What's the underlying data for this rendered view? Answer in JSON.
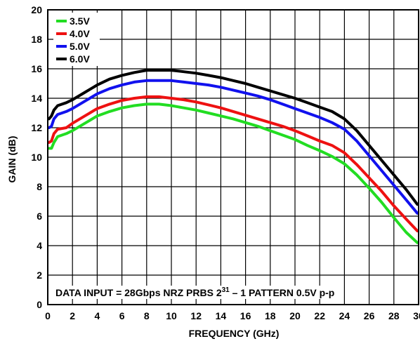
{
  "chart_data": {
    "type": "line",
    "xlabel": "FREQUENCY (GHz)",
    "ylabel": "GAIN (dB)",
    "xlim": [
      0,
      30
    ],
    "ylim": [
      0,
      20
    ],
    "x_ticks": [
      "0",
      "2",
      "4",
      "6",
      "8",
      "10",
      "12",
      "14",
      "16",
      "18",
      "20",
      "22",
      "24",
      "26",
      "28",
      "30"
    ],
    "y_ticks": [
      "0",
      "2",
      "4",
      "6",
      "8",
      "10",
      "12",
      "14",
      "16",
      "18",
      "20"
    ],
    "grid": true,
    "legend_position": "top-left",
    "annotation": {
      "prefix": "DATA INPUT = 28Gbps NRZ PRBS 2",
      "superscript": "31",
      "suffix": " – 1 PATTERN 0.5V p-p"
    },
    "series": [
      {
        "name": "3.5V",
        "color": "#22dd22",
        "points": [
          [
            0.1,
            10.6
          ],
          [
            0.3,
            10.6
          ],
          [
            0.5,
            11.0
          ],
          [
            0.8,
            11.4
          ],
          [
            1.5,
            11.6
          ],
          [
            2,
            11.8
          ],
          [
            3,
            12.3
          ],
          [
            4,
            12.8
          ],
          [
            5,
            13.1
          ],
          [
            6,
            13.35
          ],
          [
            7,
            13.5
          ],
          [
            8,
            13.6
          ],
          [
            9,
            13.6
          ],
          [
            10,
            13.5
          ],
          [
            11,
            13.35
          ],
          [
            12,
            13.2
          ],
          [
            13,
            13.0
          ],
          [
            14,
            12.8
          ],
          [
            15,
            12.6
          ],
          [
            16,
            12.35
          ],
          [
            17,
            12.1
          ],
          [
            18,
            11.8
          ],
          [
            19,
            11.5
          ],
          [
            20,
            11.2
          ],
          [
            21,
            10.8
          ],
          [
            22,
            10.45
          ],
          [
            23,
            10.05
          ],
          [
            24,
            9.55
          ],
          [
            25,
            8.8
          ],
          [
            26,
            7.9
          ],
          [
            27,
            6.95
          ],
          [
            28,
            5.9
          ],
          [
            29,
            4.9
          ],
          [
            29.9,
            4.2
          ]
        ]
      },
      {
        "name": "4.0V",
        "color": "#ee1111",
        "points": [
          [
            0.1,
            11.0
          ],
          [
            0.3,
            11.1
          ],
          [
            0.5,
            11.6
          ],
          [
            0.8,
            11.9
          ],
          [
            1.5,
            12.0
          ],
          [
            2,
            12.3
          ],
          [
            3,
            12.8
          ],
          [
            4,
            13.3
          ],
          [
            5,
            13.6
          ],
          [
            6,
            13.85
          ],
          [
            7,
            14.0
          ],
          [
            8,
            14.1
          ],
          [
            9,
            14.1
          ],
          [
            10,
            14.0
          ],
          [
            11,
            13.9
          ],
          [
            12,
            13.75
          ],
          [
            13,
            13.55
          ],
          [
            14,
            13.35
          ],
          [
            15,
            13.1
          ],
          [
            16,
            12.85
          ],
          [
            17,
            12.6
          ],
          [
            18,
            12.35
          ],
          [
            19,
            12.1
          ],
          [
            20,
            11.8
          ],
          [
            21,
            11.45
          ],
          [
            22,
            11.1
          ],
          [
            23,
            10.8
          ],
          [
            24,
            10.3
          ],
          [
            25,
            9.5
          ],
          [
            26,
            8.6
          ],
          [
            27,
            7.7
          ],
          [
            28,
            6.7
          ],
          [
            29,
            5.8
          ],
          [
            29.9,
            5.0
          ]
        ]
      },
      {
        "name": "5.0V",
        "color": "#1111ee",
        "points": [
          [
            0.1,
            12.0
          ],
          [
            0.3,
            12.1
          ],
          [
            0.5,
            12.6
          ],
          [
            0.8,
            12.9
          ],
          [
            1.5,
            13.1
          ],
          [
            2,
            13.3
          ],
          [
            3,
            13.8
          ],
          [
            4,
            14.3
          ],
          [
            5,
            14.65
          ],
          [
            6,
            14.9
          ],
          [
            7,
            15.1
          ],
          [
            8,
            15.2
          ],
          [
            9,
            15.2
          ],
          [
            10,
            15.2
          ],
          [
            11,
            15.1
          ],
          [
            12,
            15.0
          ],
          [
            13,
            14.9
          ],
          [
            14,
            14.75
          ],
          [
            15,
            14.55
          ],
          [
            16,
            14.35
          ],
          [
            17,
            14.15
          ],
          [
            18,
            13.9
          ],
          [
            19,
            13.6
          ],
          [
            20,
            13.3
          ],
          [
            21,
            13.0
          ],
          [
            22,
            12.7
          ],
          [
            23,
            12.35
          ],
          [
            24,
            11.9
          ],
          [
            25,
            11.1
          ],
          [
            26,
            10.1
          ],
          [
            27,
            9.1
          ],
          [
            28,
            8.1
          ],
          [
            29,
            7.1
          ],
          [
            29.9,
            6.2
          ]
        ]
      },
      {
        "name": "6.0V",
        "color": "#000000",
        "points": [
          [
            0.1,
            12.6
          ],
          [
            0.3,
            12.8
          ],
          [
            0.5,
            13.2
          ],
          [
            0.8,
            13.5
          ],
          [
            1.5,
            13.7
          ],
          [
            2,
            13.9
          ],
          [
            3,
            14.4
          ],
          [
            4,
            14.9
          ],
          [
            5,
            15.3
          ],
          [
            6,
            15.55
          ],
          [
            7,
            15.75
          ],
          [
            8,
            15.9
          ],
          [
            9,
            15.9
          ],
          [
            10,
            15.9
          ],
          [
            11,
            15.8
          ],
          [
            12,
            15.7
          ],
          [
            13,
            15.55
          ],
          [
            14,
            15.4
          ],
          [
            15,
            15.2
          ],
          [
            16,
            15.0
          ],
          [
            17,
            14.75
          ],
          [
            18,
            14.5
          ],
          [
            19,
            14.25
          ],
          [
            20,
            14.0
          ],
          [
            21,
            13.7
          ],
          [
            22,
            13.4
          ],
          [
            23,
            13.1
          ],
          [
            24,
            12.6
          ],
          [
            25,
            11.8
          ],
          [
            26,
            10.8
          ],
          [
            27,
            9.8
          ],
          [
            28,
            8.8
          ],
          [
            29,
            7.8
          ],
          [
            29.9,
            6.8
          ]
        ]
      }
    ]
  }
}
